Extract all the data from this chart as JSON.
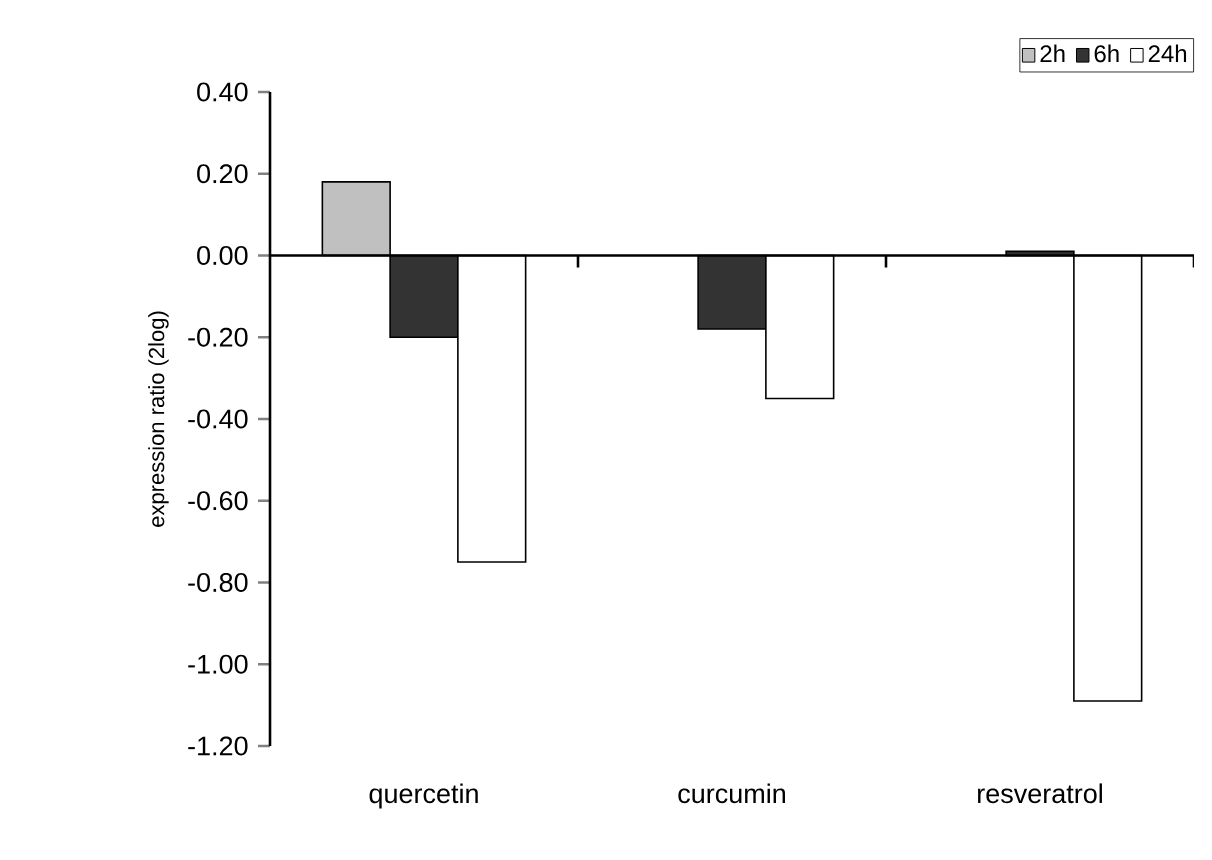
{
  "chart_data": {
    "type": "bar",
    "ylabel": "expression ratio (2log)",
    "categories": [
      "quercetin",
      "curcumin",
      "resveratrol"
    ],
    "series": [
      {
        "name": "2h",
        "color": "#c0c0c0",
        "values": [
          0.18,
          null,
          null
        ]
      },
      {
        "name": "6h",
        "color": "#333333",
        "values": [
          -0.2,
          -0.18,
          0.01
        ]
      },
      {
        "name": "24h",
        "color": "#ffffff",
        "values": [
          -0.75,
          -0.35,
          -1.09
        ]
      }
    ],
    "ylim": [
      -1.2,
      0.4
    ],
    "yticks": [
      {
        "value": -1.2,
        "label": "-1.20"
      },
      {
        "value": -1.0,
        "label": "-1.00"
      },
      {
        "value": -0.8,
        "label": "-0.80"
      },
      {
        "value": -0.6,
        "label": "-0.60"
      },
      {
        "value": -0.4,
        "label": "-0.40"
      },
      {
        "value": -0.2,
        "label": "-0.20"
      },
      {
        "value": 0,
        "label": "0.00"
      },
      {
        "value": 0.2,
        "label": "0.20"
      },
      {
        "value": 0.4,
        "label": "0.40"
      }
    ],
    "ref_lines": [
      {
        "axis": "y",
        "value": 0,
        "color": "#000000"
      }
    ],
    "grid": false,
    "legend": "top right"
  }
}
